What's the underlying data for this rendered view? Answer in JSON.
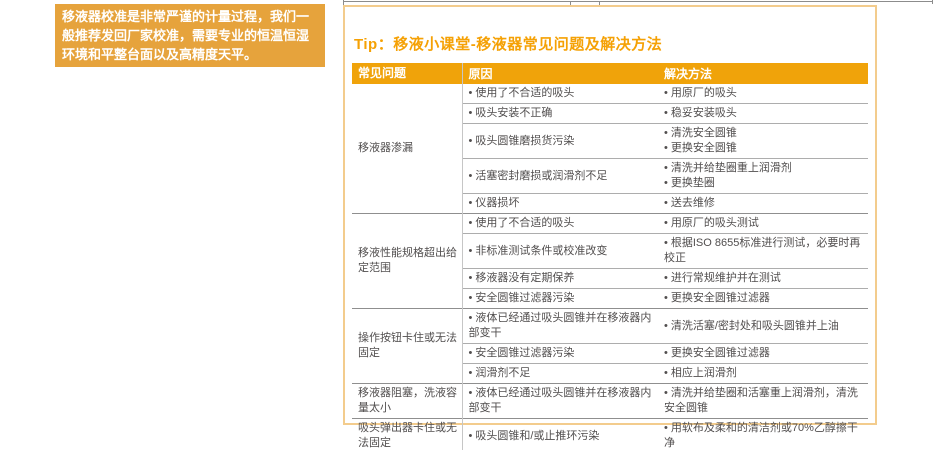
{
  "note_box": {
    "text": "移液器校准是非常严谨的计量过程，我们一般推荐发回厂家校准，需要专业的恒温恒湿环境和平整台面以及高精度天平。"
  },
  "tip": {
    "title": "Tip：移液小课堂-移液器常见问题及解决方法",
    "table": {
      "headers": [
        "常见问题",
        "原因",
        "解决方法"
      ],
      "groups": [
        {
          "problem": "移液器渗漏",
          "rows": [
            {
              "causes": [
                "使用了不合适的吸头"
              ],
              "solutions": [
                "用原厂的吸头"
              ]
            },
            {
              "causes": [
                "吸头安装不正确"
              ],
              "solutions": [
                "稳妥安装吸头"
              ]
            },
            {
              "causes": [
                "吸头圆锥磨损货污染"
              ],
              "solutions": [
                "清洗安全圆锥",
                "更换安全圆锥"
              ]
            },
            {
              "causes": [
                "活塞密封磨损或润滑剂不足"
              ],
              "solutions": [
                "清洗并给垫圈重上润滑剂",
                "更换垫圈"
              ]
            },
            {
              "causes": [
                "仪器损坏"
              ],
              "solutions": [
                "送去维修"
              ]
            }
          ]
        },
        {
          "problem": "移液性能规格超出给定范围",
          "rows": [
            {
              "causes": [
                "使用了不合适的吸头"
              ],
              "solutions": [
                "用原厂的吸头测试"
              ]
            },
            {
              "causes": [
                "非标准测试条件或校准改变"
              ],
              "solutions": [
                "根据ISO 8655标准进行测试，必要时再校正"
              ]
            },
            {
              "causes": [
                "移液器没有定期保养"
              ],
              "solutions": [
                "进行常规维护并在测试"
              ]
            },
            {
              "causes": [
                "安全圆锥过滤器污染"
              ],
              "solutions": [
                "更换安全圆锥过滤器"
              ]
            }
          ]
        },
        {
          "problem": "操作按钮卡住或无法固定",
          "rows": [
            {
              "causes": [
                "液体已经通过吸头圆锥并在移液器内部变干"
              ],
              "solutions": [
                "清洗活塞/密封处和吸头圆锥并上油"
              ]
            },
            {
              "causes": [
                "安全圆锥过滤器污染"
              ],
              "solutions": [
                "更换安全圆锥过滤器"
              ]
            },
            {
              "causes": [
                "润滑剂不足"
              ],
              "solutions": [
                "相应上润滑剂"
              ]
            }
          ]
        },
        {
          "problem": "移液器阻塞，洗液容量太小",
          "rows": [
            {
              "causes": [
                "液体已经通过吸头圆锥并在移液器内部变干"
              ],
              "solutions": [
                "清洗并给垫圈和活塞重上润滑剂，清洗安全圆锥"
              ]
            }
          ]
        },
        {
          "problem": "吸头弹出器卡住或无法固定",
          "rows": [
            {
              "causes": [
                "吸头圆锥和/或止推环污染"
              ],
              "solutions": [
                "用软布及柔和的清洁剂或70%乙醇擦干净"
              ]
            }
          ]
        }
      ]
    }
  },
  "colors": {
    "note-bg": "#E6A33C",
    "accent": "#F0A30A",
    "tip-border": "#F3CC8D",
    "title": "#F5A105",
    "text": "#514E4E",
    "line-sub": "#ADADAD",
    "line-group": "#8F8F8F",
    "line-col": "#C6C6C6",
    "artifact": "#8C8C8C"
  }
}
